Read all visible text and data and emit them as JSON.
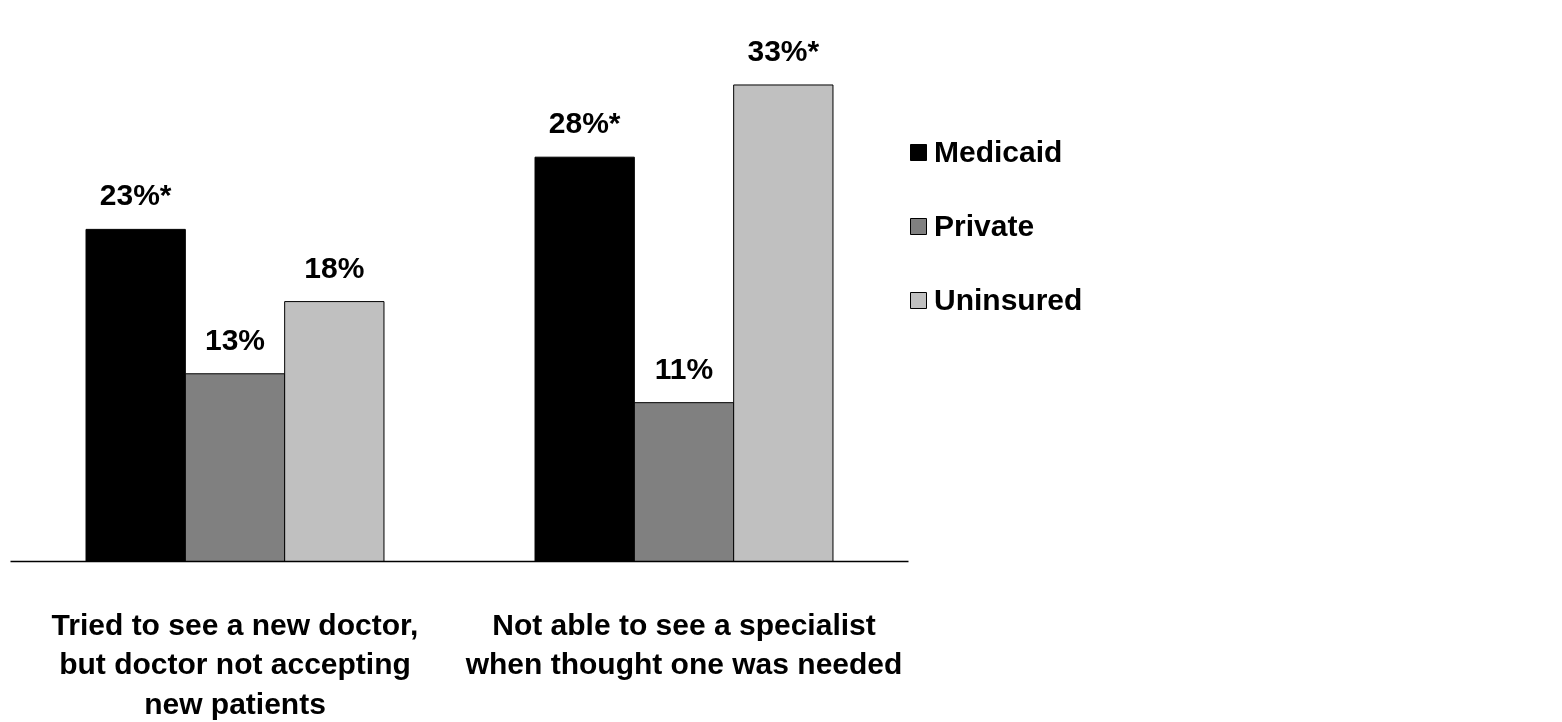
{
  "chart_data": {
    "type": "bar",
    "categories": [
      "Tried to see a new doctor,\nbut doctor not accepting\nnew patients",
      "Not able to see a specialist\nwhen thought one was needed"
    ],
    "series": [
      {
        "name": "Medicaid",
        "color": "#000000",
        "values": [
          23,
          28
        ],
        "value_labels": [
          "23%*",
          "28%*"
        ]
      },
      {
        "name": "Private",
        "color": "#808080",
        "values": [
          13,
          11
        ],
        "value_labels": [
          "13%",
          "11%"
        ]
      },
      {
        "name": "Uninsured",
        "color": "#c0c0c0",
        "values": [
          18,
          33
        ],
        "value_labels": [
          "18%",
          "33%*"
        ]
      }
    ],
    "tick_labels": "x",
    "grid": false,
    "legend": "right"
  }
}
